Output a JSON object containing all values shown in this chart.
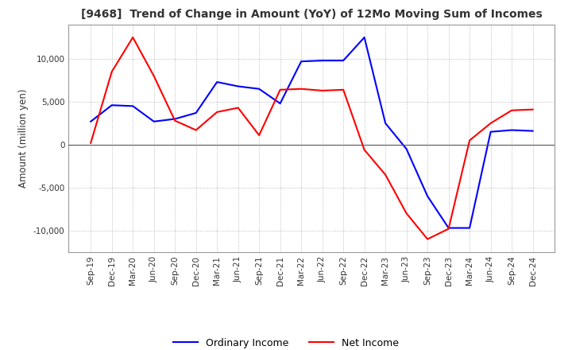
{
  "title": "[9468]  Trend of Change in Amount (YoY) of 12Mo Moving Sum of Incomes",
  "ylabel": "Amount (million yen)",
  "x_labels": [
    "Sep-19",
    "Dec-19",
    "Mar-20",
    "Jun-20",
    "Sep-20",
    "Dec-20",
    "Mar-21",
    "Jun-21",
    "Sep-21",
    "Dec-21",
    "Mar-22",
    "Jun-22",
    "Sep-22",
    "Dec-22",
    "Mar-23",
    "Jun-23",
    "Sep-23",
    "Dec-23",
    "Mar-24",
    "Jun-24",
    "Sep-24",
    "Dec-24"
  ],
  "ordinary_income": [
    2700,
    4600,
    4500,
    2700,
    3000,
    3700,
    7300,
    6800,
    6500,
    4800,
    9700,
    9800,
    9800,
    12500,
    2500,
    -500,
    -6000,
    -9700,
    -9700,
    1500,
    1700,
    1600
  ],
  "net_income": [
    200,
    8500,
    12500,
    8000,
    2800,
    1700,
    3800,
    4300,
    1100,
    6400,
    6500,
    6300,
    6400,
    -600,
    -3500,
    -8000,
    -11000,
    -9800,
    500,
    2500,
    4000,
    4100
  ],
  "ordinary_color": "#0000ff",
  "net_color": "#ff0000",
  "ylim": [
    -12500,
    14000
  ],
  "yticks": [
    -10000,
    -5000,
    0,
    5000,
    10000
  ],
  "grid_color": "#aaaaaa",
  "background_color": "#ffffff",
  "legend_labels": [
    "Ordinary Income",
    "Net Income"
  ],
  "line_width": 1.5
}
